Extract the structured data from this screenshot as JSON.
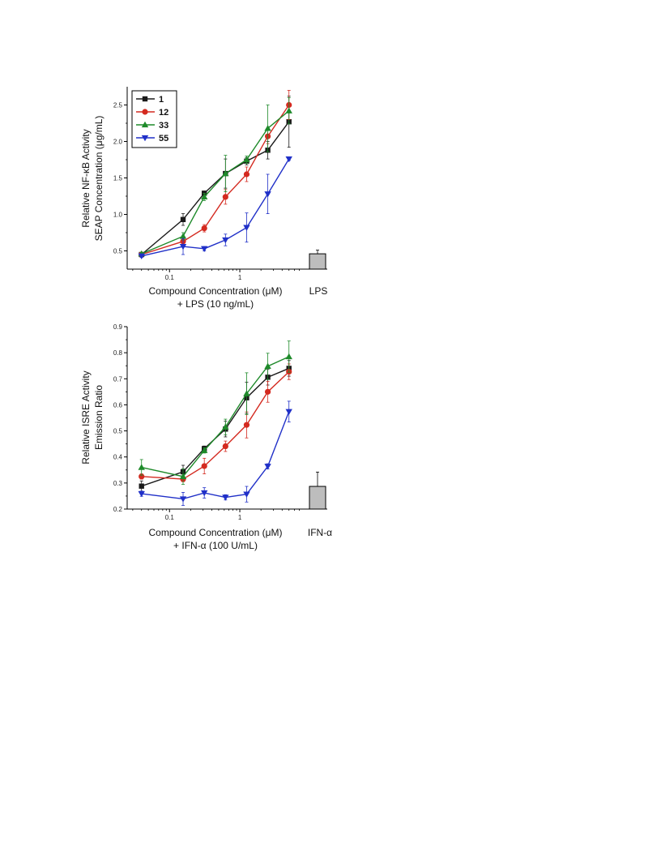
{
  "chart_data": [
    {
      "type": "line",
      "ylabel_lines": [
        "Relative NF-κB Activity",
        "SEAP Concentration (μg/mL)"
      ],
      "xlabel_lines": [
        "Compound Concentration (μM)",
        "+ LPS (10 ng/mL)"
      ],
      "x_scale": "log",
      "xlim": [
        0.025,
        7.5
      ],
      "ylim": [
        0.25,
        2.75
      ],
      "y_ticks": [
        0.5,
        1.0,
        1.5,
        2.0,
        2.5
      ],
      "y_tick_labels": [
        "0.5",
        "1.0",
        "1.5",
        "2.0",
        "2.5"
      ],
      "x_ticks": [
        0.1,
        1
      ],
      "x_tick_labels": [
        "0.1",
        "1"
      ],
      "x": [
        0.04,
        0.156,
        0.3125,
        0.625,
        1.25,
        2.5,
        5.0
      ],
      "series": [
        {
          "name": "1",
          "color": "#1a1a1a",
          "marker": "square",
          "values": [
            0.45,
            0.93,
            1.29,
            1.56,
            1.73,
            1.88,
            2.27
          ],
          "errors": [
            0.02,
            0.08,
            0.03,
            0.2,
            0.05,
            0.12,
            0.35
          ]
        },
        {
          "name": "12",
          "color": "#d42a20",
          "marker": "circle",
          "values": [
            0.45,
            0.63,
            0.81,
            1.24,
            1.55,
            2.07,
            2.5
          ],
          "errors": [
            0.02,
            0.05,
            0.05,
            0.1,
            0.1,
            0.1,
            0.2
          ]
        },
        {
          "name": "33",
          "color": "#1e8a2a",
          "marker": "triangle-up",
          "values": [
            0.46,
            0.7,
            1.24,
            1.56,
            1.75,
            2.18,
            2.42
          ],
          "errors": [
            0.02,
            0.05,
            0.05,
            0.25,
            0.05,
            0.32,
            0.18
          ]
        },
        {
          "name": "55",
          "color": "#2030c8",
          "marker": "triangle-down",
          "values": [
            0.43,
            0.56,
            0.53,
            0.65,
            0.82,
            1.28,
            1.76
          ],
          "errors": [
            0.02,
            0.11,
            0.03,
            0.08,
            0.2,
            0.27,
            0.02
          ]
        }
      ],
      "control_bar": {
        "label": "LPS",
        "value": 0.46,
        "error": 0.05,
        "color": "#bdbdbd"
      },
      "legend_position": "top-left"
    },
    {
      "type": "line",
      "ylabel_lines": [
        "Relative ISRE Activity",
        "Emission Ratio"
      ],
      "xlabel_lines": [
        "Compound Concentration (μM)",
        "+ IFN-α (100 U/mL)"
      ],
      "x_scale": "log",
      "xlim": [
        0.025,
        7.5
      ],
      "ylim": [
        0.2,
        0.9
      ],
      "y_ticks": [
        0.2,
        0.3,
        0.4,
        0.5,
        0.6,
        0.7,
        0.8,
        0.9
      ],
      "y_tick_labels": [
        "0.2",
        "0.3",
        "0.4",
        "0.5",
        "0.6",
        "0.7",
        "0.8",
        "0.9"
      ],
      "x_ticks": [
        0.1,
        1
      ],
      "x_tick_labels": [
        "0.1",
        "1"
      ],
      "x": [
        0.04,
        0.156,
        0.3125,
        0.625,
        1.25,
        2.5,
        5.0
      ],
      "series": [
        {
          "name": "1",
          "color": "#1a1a1a",
          "marker": "square",
          "values": [
            0.288,
            0.343,
            0.432,
            0.507,
            0.627,
            0.706,
            0.74
          ],
          "errors": [
            0.02,
            0.025,
            0.01,
            0.03,
            0.06,
            0.03,
            0.03
          ]
        },
        {
          "name": "12",
          "color": "#d42a20",
          "marker": "circle",
          "values": [
            0.325,
            0.315,
            0.365,
            0.441,
            0.523,
            0.65,
            0.727
          ],
          "errors": [
            0.01,
            0.01,
            0.03,
            0.02,
            0.05,
            0.04,
            0.03
          ]
        },
        {
          "name": "33",
          "color": "#1e8a2a",
          "marker": "triangle-up",
          "values": [
            0.36,
            0.325,
            0.425,
            0.515,
            0.643,
            0.748,
            0.785
          ],
          "errors": [
            0.03,
            0.03,
            0.01,
            0.03,
            0.08,
            0.05,
            0.06
          ]
        },
        {
          "name": "55",
          "color": "#2030c8",
          "marker": "triangle-down",
          "values": [
            0.259,
            0.239,
            0.262,
            0.245,
            0.257,
            0.364,
            0.574
          ],
          "errors": [
            0.01,
            0.025,
            0.02,
            0.01,
            0.03,
            0.01,
            0.04
          ]
        }
      ],
      "control_bar": {
        "label": "IFN-α",
        "value": 0.287,
        "error": 0.055,
        "color": "#bdbdbd"
      }
    }
  ]
}
